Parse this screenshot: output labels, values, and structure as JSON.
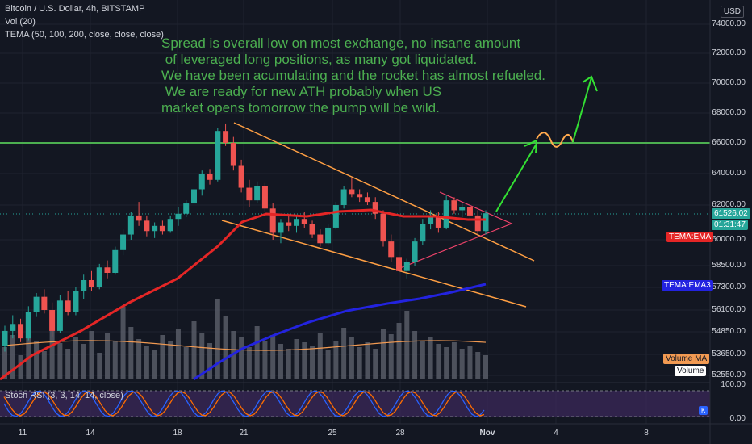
{
  "header": {
    "symbol_line": "Bitcoin / U.S. Dollar, 4h, BITSTAMP",
    "vol_line": "Vol (20)",
    "tema_line": "TEMA (50, 100, 200, close, close, close)"
  },
  "annotation_text": "Spread is overall low on most exchange, no insane amount\n of leveraged long positions, as many got liquidated.\nWe have been acumulating and the rocket has almost refueled.\n We are ready for new ATH probably when US\nmarket opens tomorrow the pump will be wild.",
  "currency_label": "USD",
  "price_axis_labels": [
    "74000.00",
    "72000.00",
    "70000.00",
    "68000.00",
    "66000.00",
    "64000.00",
    "62000.00",
    "60000.00",
    "58500.00",
    "57300.00",
    "56100.00",
    "54850.00",
    "53650.00",
    "52550.00"
  ],
  "time_axis_labels": [
    "11",
    "14",
    "18",
    "21",
    "25",
    "28",
    "Nov",
    "4",
    "8"
  ],
  "badges": {
    "last_price": "61526.02",
    "countdown": "01:31:47",
    "tema_ema": "TEMA:EMA",
    "tema_ema3": "TEMA:EMA3",
    "volume_ma": "Volume MA",
    "volume": "Volume"
  },
  "stoch": {
    "label": "Stoch RSI (3, 3, 14, 14, close)",
    "axis_top": "100.00",
    "axis_bottom": "0.00"
  },
  "colors": {
    "background": "#131722",
    "bull": "#26a69a",
    "bear": "#ef5350",
    "tema1": "#e52626",
    "tema3": "#2323e0",
    "resistance": "#4caf50",
    "wedge": "#ff9f43",
    "triangle": "#f0436b",
    "arrow": "#33e033",
    "stoch_bg": "#3d2a5c"
  },
  "chart_data": {
    "type": "candlestick",
    "symbol": "BTC/USD",
    "interval": "4h",
    "price_range": [
      52550,
      74000
    ],
    "candles_approx": [
      {
        "o": 54100,
        "h": 55200,
        "l": 53800,
        "c": 54900
      },
      {
        "o": 54900,
        "h": 55800,
        "l": 54500,
        "c": 55300
      },
      {
        "o": 55300,
        "h": 55600,
        "l": 54300,
        "c": 54500
      },
      {
        "o": 54500,
        "h": 56300,
        "l": 54400,
        "c": 56000
      },
      {
        "o": 56000,
        "h": 57000,
        "l": 55700,
        "c": 56800
      },
      {
        "o": 56800,
        "h": 57200,
        "l": 55900,
        "c": 56100
      },
      {
        "o": 56100,
        "h": 56500,
        "l": 54600,
        "c": 54900
      },
      {
        "o": 54900,
        "h": 56900,
        "l": 54800,
        "c": 56600
      },
      {
        "o": 56600,
        "h": 57100,
        "l": 55800,
        "c": 56000
      },
      {
        "o": 56000,
        "h": 57300,
        "l": 55800,
        "c": 57100
      },
      {
        "o": 57100,
        "h": 58000,
        "l": 56700,
        "c": 57700
      },
      {
        "o": 57700,
        "h": 58200,
        "l": 57100,
        "c": 57300
      },
      {
        "o": 57300,
        "h": 58600,
        "l": 57200,
        "c": 58400
      },
      {
        "o": 58400,
        "h": 58800,
        "l": 57800,
        "c": 58100
      },
      {
        "o": 58100,
        "h": 59600,
        "l": 58000,
        "c": 59400
      },
      {
        "o": 59400,
        "h": 60600,
        "l": 59100,
        "c": 60300
      },
      {
        "o": 60300,
        "h": 61600,
        "l": 60000,
        "c": 61400
      },
      {
        "o": 61400,
        "h": 62200,
        "l": 60800,
        "c": 61100
      },
      {
        "o": 61100,
        "h": 61400,
        "l": 60200,
        "c": 60500
      },
      {
        "o": 60500,
        "h": 61000,
        "l": 60100,
        "c": 60800
      },
      {
        "o": 60800,
        "h": 61100,
        "l": 60300,
        "c": 60500
      },
      {
        "o": 60500,
        "h": 61400,
        "l": 60400,
        "c": 61200
      },
      {
        "o": 61200,
        "h": 61900,
        "l": 60800,
        "c": 61500
      },
      {
        "o": 61500,
        "h": 62300,
        "l": 61300,
        "c": 62100
      },
      {
        "o": 62100,
        "h": 63400,
        "l": 61900,
        "c": 63000
      },
      {
        "o": 63000,
        "h": 64200,
        "l": 62600,
        "c": 64000
      },
      {
        "o": 64000,
        "h": 64300,
        "l": 63300,
        "c": 63600
      },
      {
        "o": 63600,
        "h": 67000,
        "l": 63500,
        "c": 66800
      },
      {
        "o": 66800,
        "h": 67300,
        "l": 65800,
        "c": 66000
      },
      {
        "o": 66000,
        "h": 66400,
        "l": 64200,
        "c": 64500
      },
      {
        "o": 64500,
        "h": 64900,
        "l": 62800,
        "c": 63100
      },
      {
        "o": 63100,
        "h": 63600,
        "l": 61900,
        "c": 62300
      },
      {
        "o": 62300,
        "h": 63500,
        "l": 62100,
        "c": 63200
      },
      {
        "o": 63200,
        "h": 63400,
        "l": 61600,
        "c": 61800
      },
      {
        "o": 61800,
        "h": 62100,
        "l": 60000,
        "c": 60400
      },
      {
        "o": 60400,
        "h": 61200,
        "l": 59800,
        "c": 61000
      },
      {
        "o": 61000,
        "h": 61500,
        "l": 60500,
        "c": 60800
      },
      {
        "o": 60800,
        "h": 61400,
        "l": 60400,
        "c": 61200
      },
      {
        "o": 61200,
        "h": 61600,
        "l": 60700,
        "c": 60900
      },
      {
        "o": 60900,
        "h": 61100,
        "l": 60100,
        "c": 60300
      },
      {
        "o": 60300,
        "h": 60600,
        "l": 59600,
        "c": 59800
      },
      {
        "o": 59800,
        "h": 60900,
        "l": 59700,
        "c": 60700
      },
      {
        "o": 60700,
        "h": 62200,
        "l": 60600,
        "c": 62000
      },
      {
        "o": 62000,
        "h": 63200,
        "l": 61800,
        "c": 63000
      },
      {
        "o": 63000,
        "h": 63700,
        "l": 62500,
        "c": 62700
      },
      {
        "o": 62700,
        "h": 63000,
        "l": 62200,
        "c": 62500
      },
      {
        "o": 62500,
        "h": 62800,
        "l": 62000,
        "c": 62200
      },
      {
        "o": 62200,
        "h": 62500,
        "l": 61200,
        "c": 61500
      },
      {
        "o": 61500,
        "h": 61700,
        "l": 59600,
        "c": 59900
      },
      {
        "o": 59900,
        "h": 60300,
        "l": 58700,
        "c": 59000
      },
      {
        "o": 59000,
        "h": 59300,
        "l": 58000,
        "c": 58200
      },
      {
        "o": 58200,
        "h": 58900,
        "l": 57800,
        "c": 58700
      },
      {
        "o": 58700,
        "h": 60100,
        "l": 58500,
        "c": 59900
      },
      {
        "o": 59900,
        "h": 61200,
        "l": 59700,
        "c": 60900
      },
      {
        "o": 60900,
        "h": 61700,
        "l": 60600,
        "c": 61300
      },
      {
        "o": 61300,
        "h": 61600,
        "l": 60400,
        "c": 60700
      },
      {
        "o": 60700,
        "h": 62600,
        "l": 60600,
        "c": 62300
      },
      {
        "o": 62300,
        "h": 62500,
        "l": 61500,
        "c": 61700
      },
      {
        "o": 61700,
        "h": 62100,
        "l": 61300,
        "c": 61900
      },
      {
        "o": 61900,
        "h": 62100,
        "l": 61100,
        "c": 61400
      },
      {
        "o": 61400,
        "h": 61700,
        "l": 60200,
        "c": 60500
      },
      {
        "o": 60500,
        "h": 61700,
        "l": 60300,
        "c": 61526
      }
    ],
    "levels": {
      "resistance": 66000
    },
    "tema_ema_last": 60000,
    "tema_ema3_last": 57300,
    "legend": [
      "TEMA:EMA",
      "TEMA:EMA3",
      "Volume MA",
      "Volume"
    ]
  }
}
